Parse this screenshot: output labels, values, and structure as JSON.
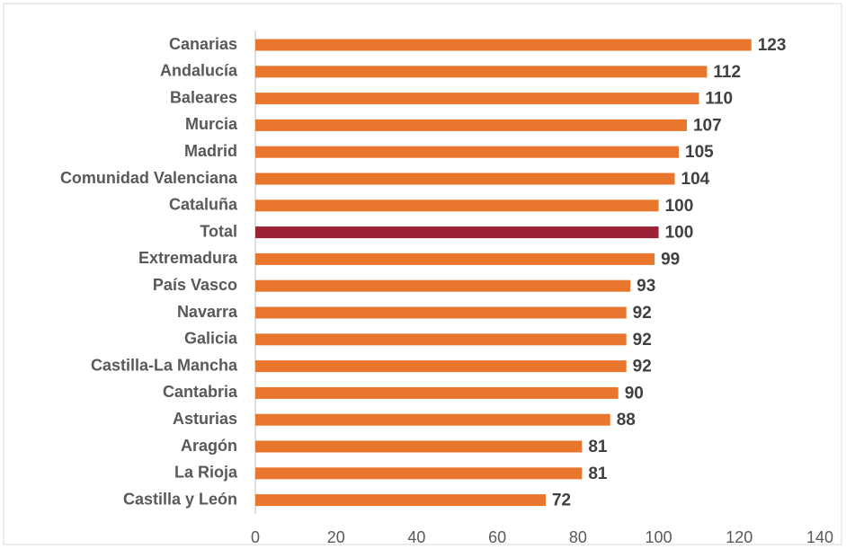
{
  "chart_data": {
    "type": "bar",
    "orientation": "horizontal",
    "categories": [
      "Canarias",
      "Andalucía",
      "Baleares",
      "Murcia",
      "Madrid",
      "Comunidad Valenciana",
      "Cataluña",
      "Total",
      "Extremadura",
      "País Vasco",
      "Navarra",
      "Galicia",
      "Castilla-La Mancha",
      "Cantabria",
      "Asturias",
      "Aragón",
      "La Rioja",
      "Castilla y León"
    ],
    "values": [
      123,
      112,
      110,
      107,
      105,
      104,
      100,
      100,
      99,
      93,
      92,
      92,
      92,
      90,
      88,
      81,
      81,
      72
    ],
    "colors": [
      "#e8762d",
      "#e8762d",
      "#e8762d",
      "#e8762d",
      "#e8762d",
      "#e8762d",
      "#e8762d",
      "#9b2335",
      "#e8762d",
      "#e8762d",
      "#e8762d",
      "#e8762d",
      "#e8762d",
      "#e8762d",
      "#e8762d",
      "#e8762d",
      "#e8762d",
      "#e8762d"
    ],
    "xlim": [
      0,
      140
    ],
    "xticks": [
      0,
      20,
      40,
      60,
      80,
      100,
      120,
      140
    ],
    "grid": false
  }
}
